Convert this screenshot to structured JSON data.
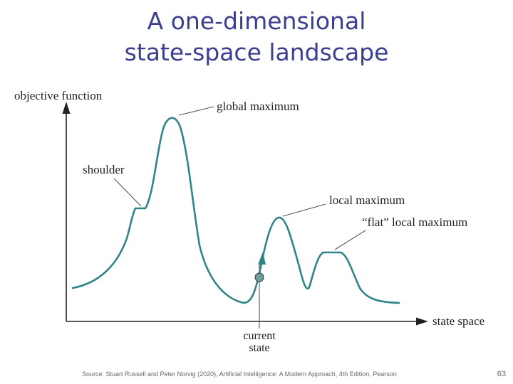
{
  "title": {
    "line1": "A one-dimensional",
    "line2": "state-space landscape"
  },
  "diagram": {
    "y_axis_label": "objective function",
    "x_axis_label": "state space",
    "labels": {
      "global_maximum": "global maximum",
      "shoulder": "shoulder",
      "local_maximum": "local maximum",
      "flat_local_maximum": "“flat” local maximum",
      "current_state_line1": "current",
      "current_state_line2": "state"
    },
    "colors": {
      "curve": "#2f8585",
      "current_state_marker": "#6f9e9a",
      "arrow": "#2f8585",
      "axis": "#222222"
    }
  },
  "footer": {
    "source": "Source: Stuart Russell and Peter Norvig (2020), Artificial Intelligence: A Modern Approach, 4th Edition, Pearson",
    "page_number": "63"
  }
}
